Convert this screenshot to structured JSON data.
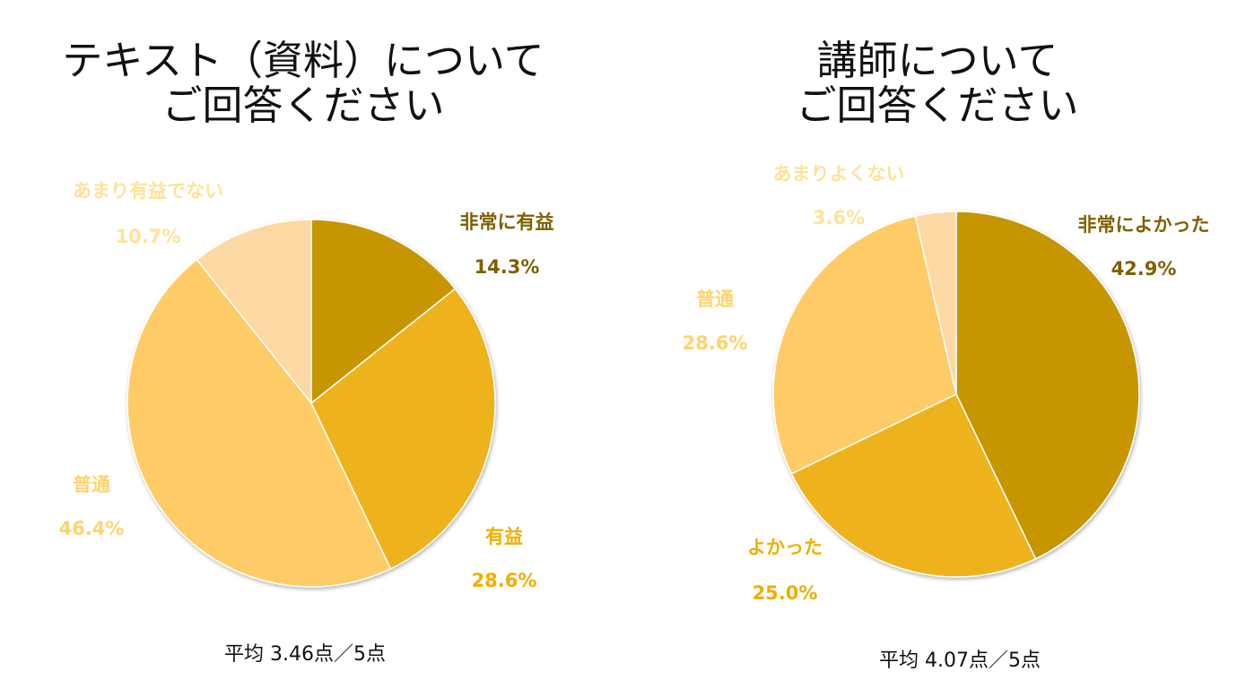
{
  "chart_data": [
    {
      "type": "pie",
      "title_lines": [
        "テキスト（資料）について",
        "ご回答ください"
      ],
      "categories": [
        "非常に有益",
        "有益",
        "普通",
        "あまり有益でない"
      ],
      "values": [
        14.3,
        28.6,
        46.4,
        10.7
      ],
      "value_labels": [
        "14.3%",
        "28.6%",
        "46.4%",
        "10.7%"
      ],
      "colors": [
        "#C79500",
        "#EEB31A",
        "#FFCB66",
        "#FCD9A3"
      ],
      "label_colors": [
        "#7F6000",
        "#EEB000",
        "#FFD36E",
        "#FFE29A"
      ],
      "footnote": "平均 3.46点／5点"
    },
    {
      "type": "pie",
      "title_lines": [
        "講師について",
        "ご回答ください"
      ],
      "categories": [
        "非常によかった",
        "よかった",
        "普通",
        "あまりよくない"
      ],
      "values": [
        42.9,
        25.0,
        28.6,
        3.6
      ],
      "value_labels": [
        "42.9%",
        "25.0%",
        "28.6%",
        "3.6%"
      ],
      "colors": [
        "#C79500",
        "#EEB31A",
        "#FFCB66",
        "#FCD9A3"
      ],
      "label_colors": [
        "#7F6000",
        "#EEB000",
        "#FFD36E",
        "#FFE29A"
      ],
      "footnote": "平均 4.07点／5点"
    }
  ]
}
